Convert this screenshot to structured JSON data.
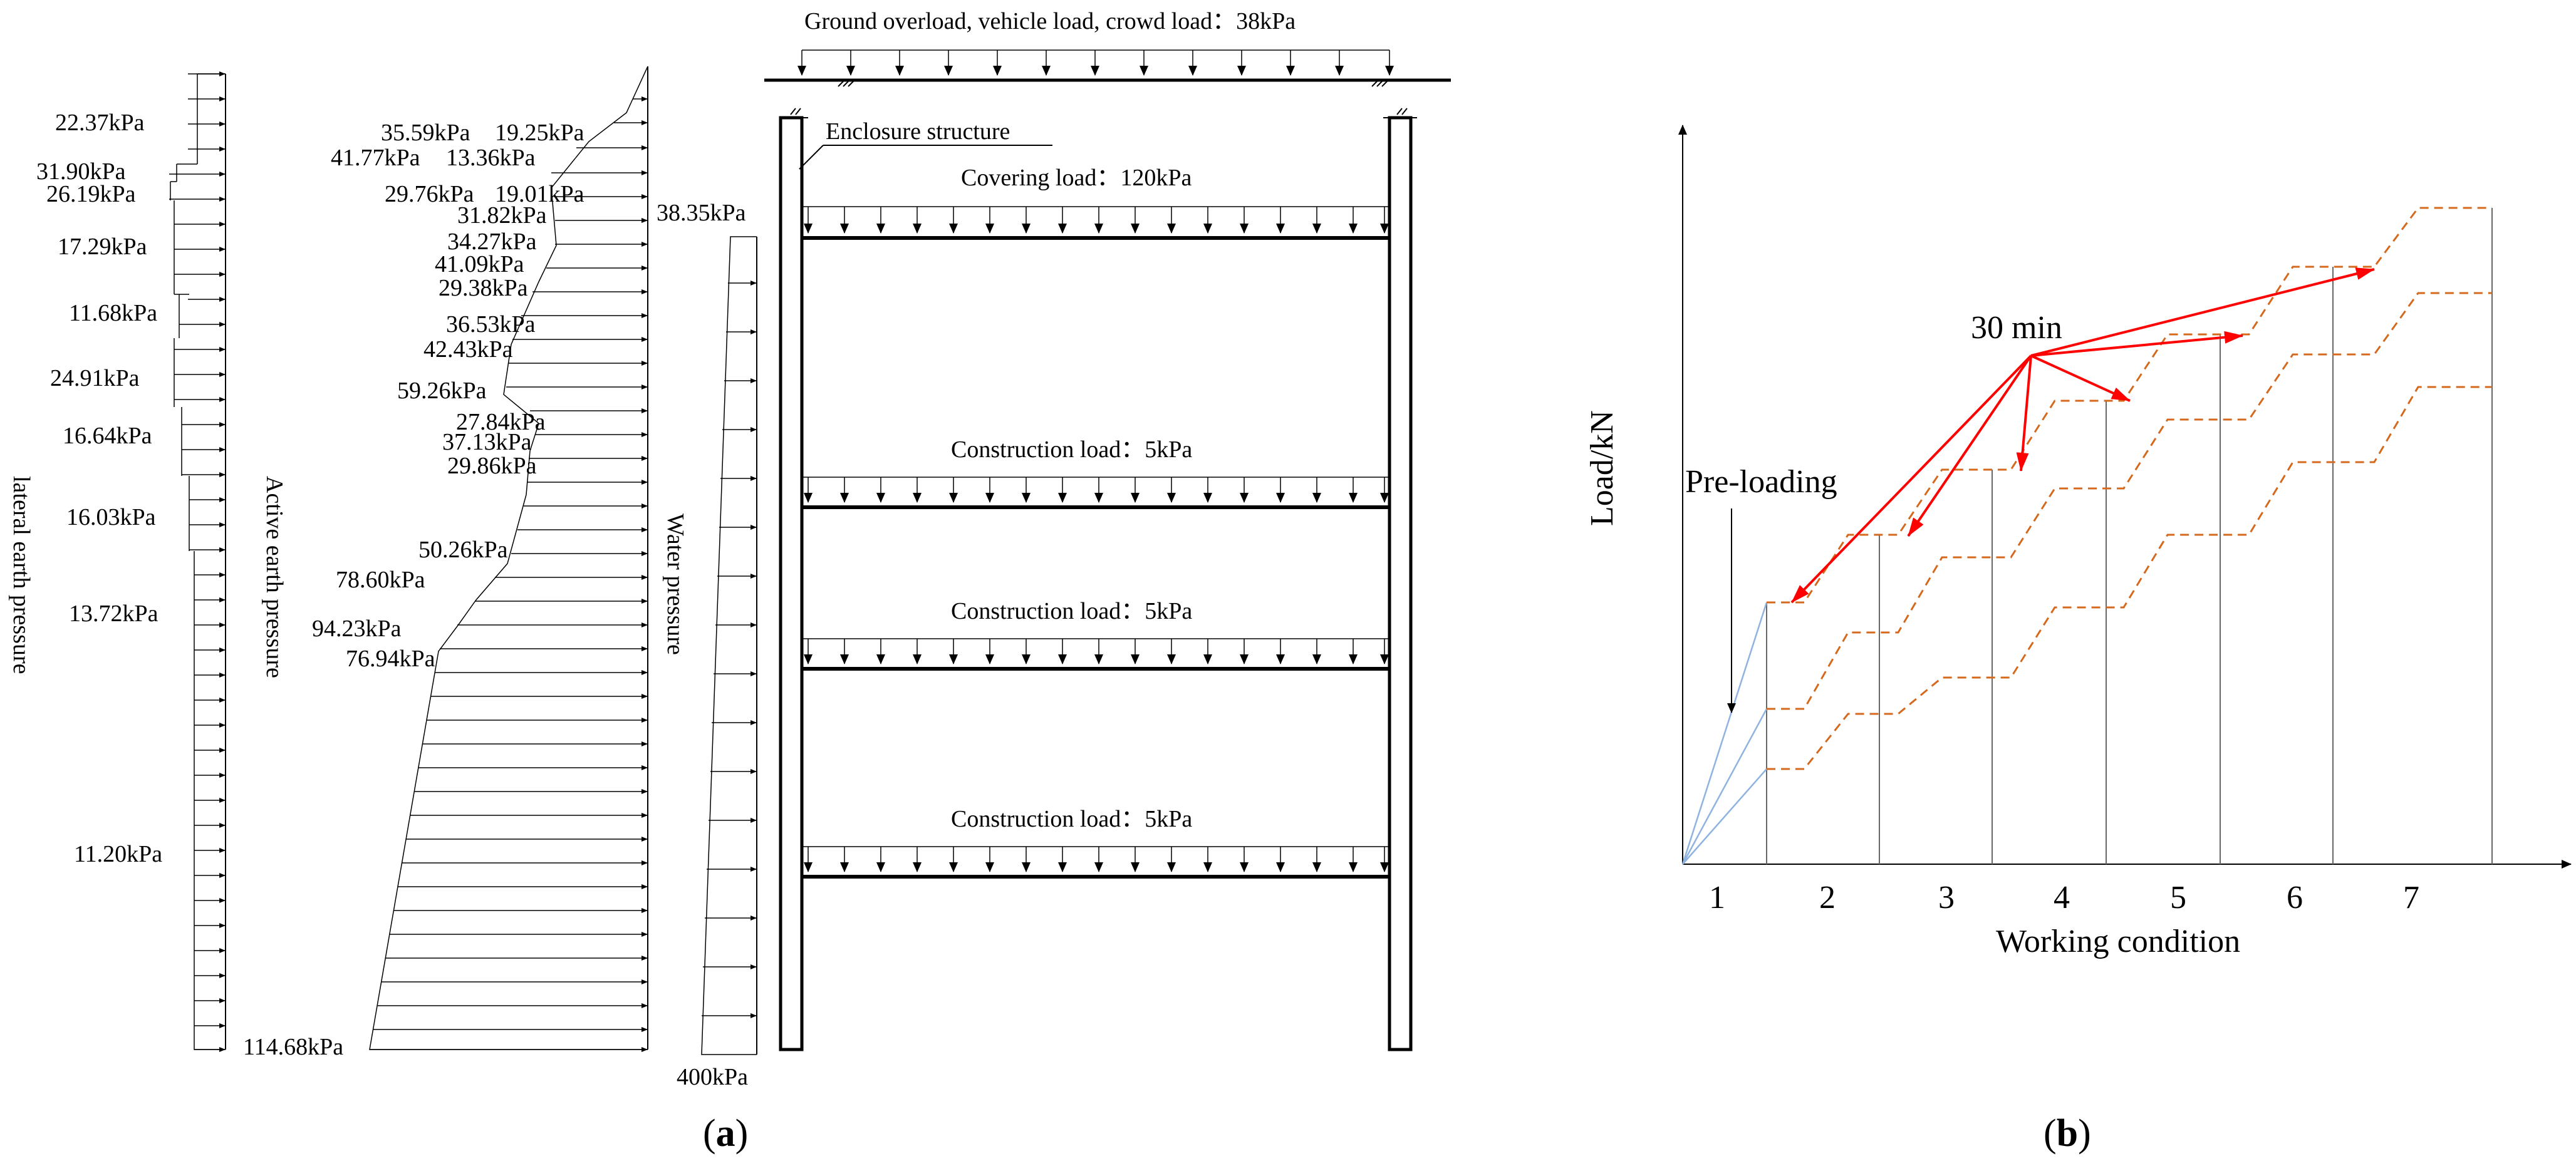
{
  "panel_a": {
    "caption_letter": "a",
    "top_load_label": "Ground overload, vehicle load, crowd load：38kPa",
    "enclosure_label": "Enclosure structure",
    "covering_load_label": "Covering load：120kPa",
    "construction_load_labels": [
      "Construction load：5kPa",
      "Construction load：5kPa",
      "Construction load：5kPa"
    ],
    "lateral_title": "lateral earth pressure",
    "lateral_values": [
      "22.37kPa",
      "31.90kPa",
      "26.19kPa",
      "17.29kPa",
      "11.68kPa",
      "24.91kPa",
      "16.64kPa",
      "16.03kPa",
      "13.72kPa",
      "11.20kPa"
    ],
    "active_title": "Active earth pressure",
    "active_values": [
      "35.59kPa",
      "19.25kPa",
      "41.77kPa",
      "13.36kPa",
      "29.76kPa",
      "19.01kPa",
      "31.82kPa",
      "34.27kPa",
      "41.09kPa",
      "29.38kPa",
      "36.53kPa",
      "42.43kPa",
      "59.26kPa",
      "27.84kPa",
      "37.13kPa",
      "29.86kPa",
      "50.26kPa",
      "78.60kPa",
      "94.23kPa",
      "76.94kPa",
      "114.68kPa"
    ],
    "water_title": "Water pressure",
    "water_top": "38.35kPa",
    "water_bottom": "400kPa"
  },
  "panel_b": {
    "caption_letter": "b",
    "y_axis_label": "Load/kN",
    "x_axis_label": "Working condition",
    "x_ticks": [
      "1",
      "2",
      "3",
      "4",
      "5",
      "6",
      "7"
    ],
    "annotation_time": "30 min",
    "annotation_preload": "Pre-loading",
    "colors": {
      "staircase": "#d4691e",
      "preload": "#8fb3e0",
      "arrow": "#ff0000"
    }
  }
}
